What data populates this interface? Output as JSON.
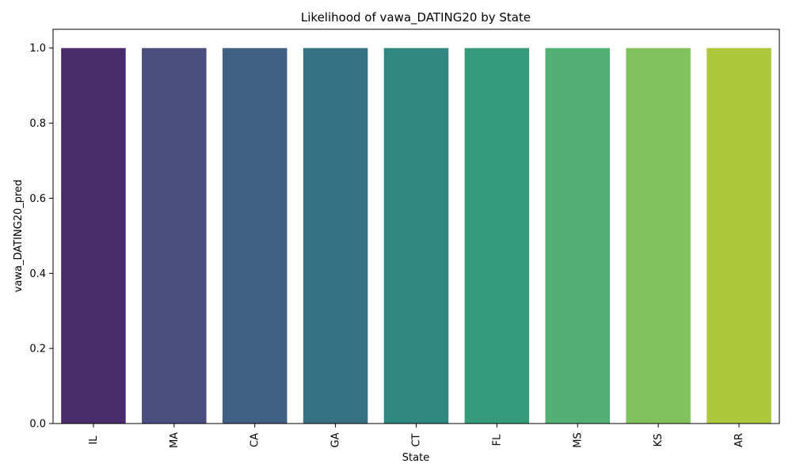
{
  "chart_data": {
    "type": "bar",
    "title": "Likelihood of vawa_DATING20 by State",
    "xlabel": "State",
    "ylabel": "vawa_DATING20_pred",
    "categories": [
      "IL",
      "MA",
      "CA",
      "GA",
      "CT",
      "FL",
      "MS",
      "KS",
      "AR"
    ],
    "values": [
      1,
      1,
      1,
      1,
      1,
      1,
      1,
      1,
      1
    ],
    "colors": [
      "#4a2c6d",
      "#4a4e7f",
      "#416184",
      "#377283",
      "#2f877f",
      "#369b7b",
      "#52b075",
      "#81c25f",
      "#aec83e"
    ],
    "ylim": [
      0,
      1.05
    ],
    "yticks": [
      "0.0",
      "0.2",
      "0.4",
      "0.6",
      "0.8",
      "1.0"
    ],
    "ytick_values": [
      0,
      0.2,
      0.4,
      0.6,
      0.8,
      1.0
    ],
    "grid": false,
    "legend": "none",
    "x_tick_rotation": "vertical"
  }
}
